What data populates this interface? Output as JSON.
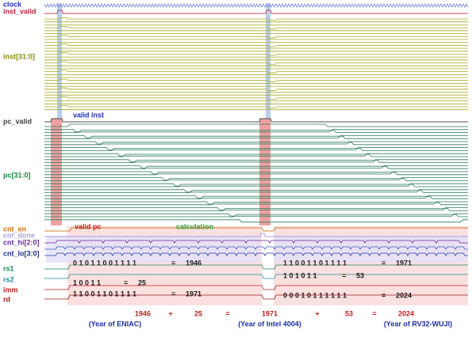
{
  "signals": [
    {
      "label": "clock",
      "color": "#1f2fbf"
    },
    {
      "label": "inst_valid",
      "color": "#c0203a"
    },
    {
      "label": "inst[31:0]",
      "color": "#8a8a10"
    },
    {
      "label": "pc_valid",
      "color": "#404040"
    },
    {
      "label": "pc[31:0]",
      "color": "#1a8a3a"
    },
    {
      "label": "cnt_en",
      "color": "#d07010"
    },
    {
      "label": "cnt_done",
      "color": "#b0a0e0"
    },
    {
      "label": "cnt_hi[2:0]",
      "color": "#6a2a9a"
    },
    {
      "label": "cnt_lo[3:0]",
      "color": "#20308a"
    },
    {
      "label": "rs1",
      "color": "#1a8a5a"
    },
    {
      "label": "rs2",
      "color": "#208a9a"
    },
    {
      "label": "imm",
      "color": "#c02020"
    },
    {
      "label": "rd",
      "color": "#a01818"
    }
  ],
  "annotations": {
    "valid_inst": "valid inst",
    "valid_pc": "valid pc",
    "calculation": "calculation"
  },
  "values": [
    {
      "bits": "0 1 0 1 1 0 0 1 1 1 1",
      "eq": "=",
      "result": "1946"
    },
    {
      "bits": "1 1 0 0 1 1 0 1 1 1 1",
      "eq": "=",
      "result": "1971"
    },
    {
      "bits": "1 0 1 0 1 1",
      "eq": "=",
      "result": "53"
    },
    {
      "bits": "1 0 0 1 1",
      "eq": "=",
      "result": "25"
    },
    {
      "bits": "1 1 0 0 1 1 0 1 1 1 1",
      "eq": "=",
      "result": "1971"
    },
    {
      "bits": "0 0 0 1 0 1 1 1 1 1 1",
      "eq": "=",
      "result": "2024"
    }
  ],
  "equation": {
    "terms": [
      "1946",
      "+",
      "25",
      "=",
      "1971",
      "+",
      "53",
      "=",
      "2024"
    ],
    "captions": [
      "(Year of ENIAC)",
      "(Year of Intel 4004)",
      "(Year of RV32-WUJI)"
    ]
  }
}
